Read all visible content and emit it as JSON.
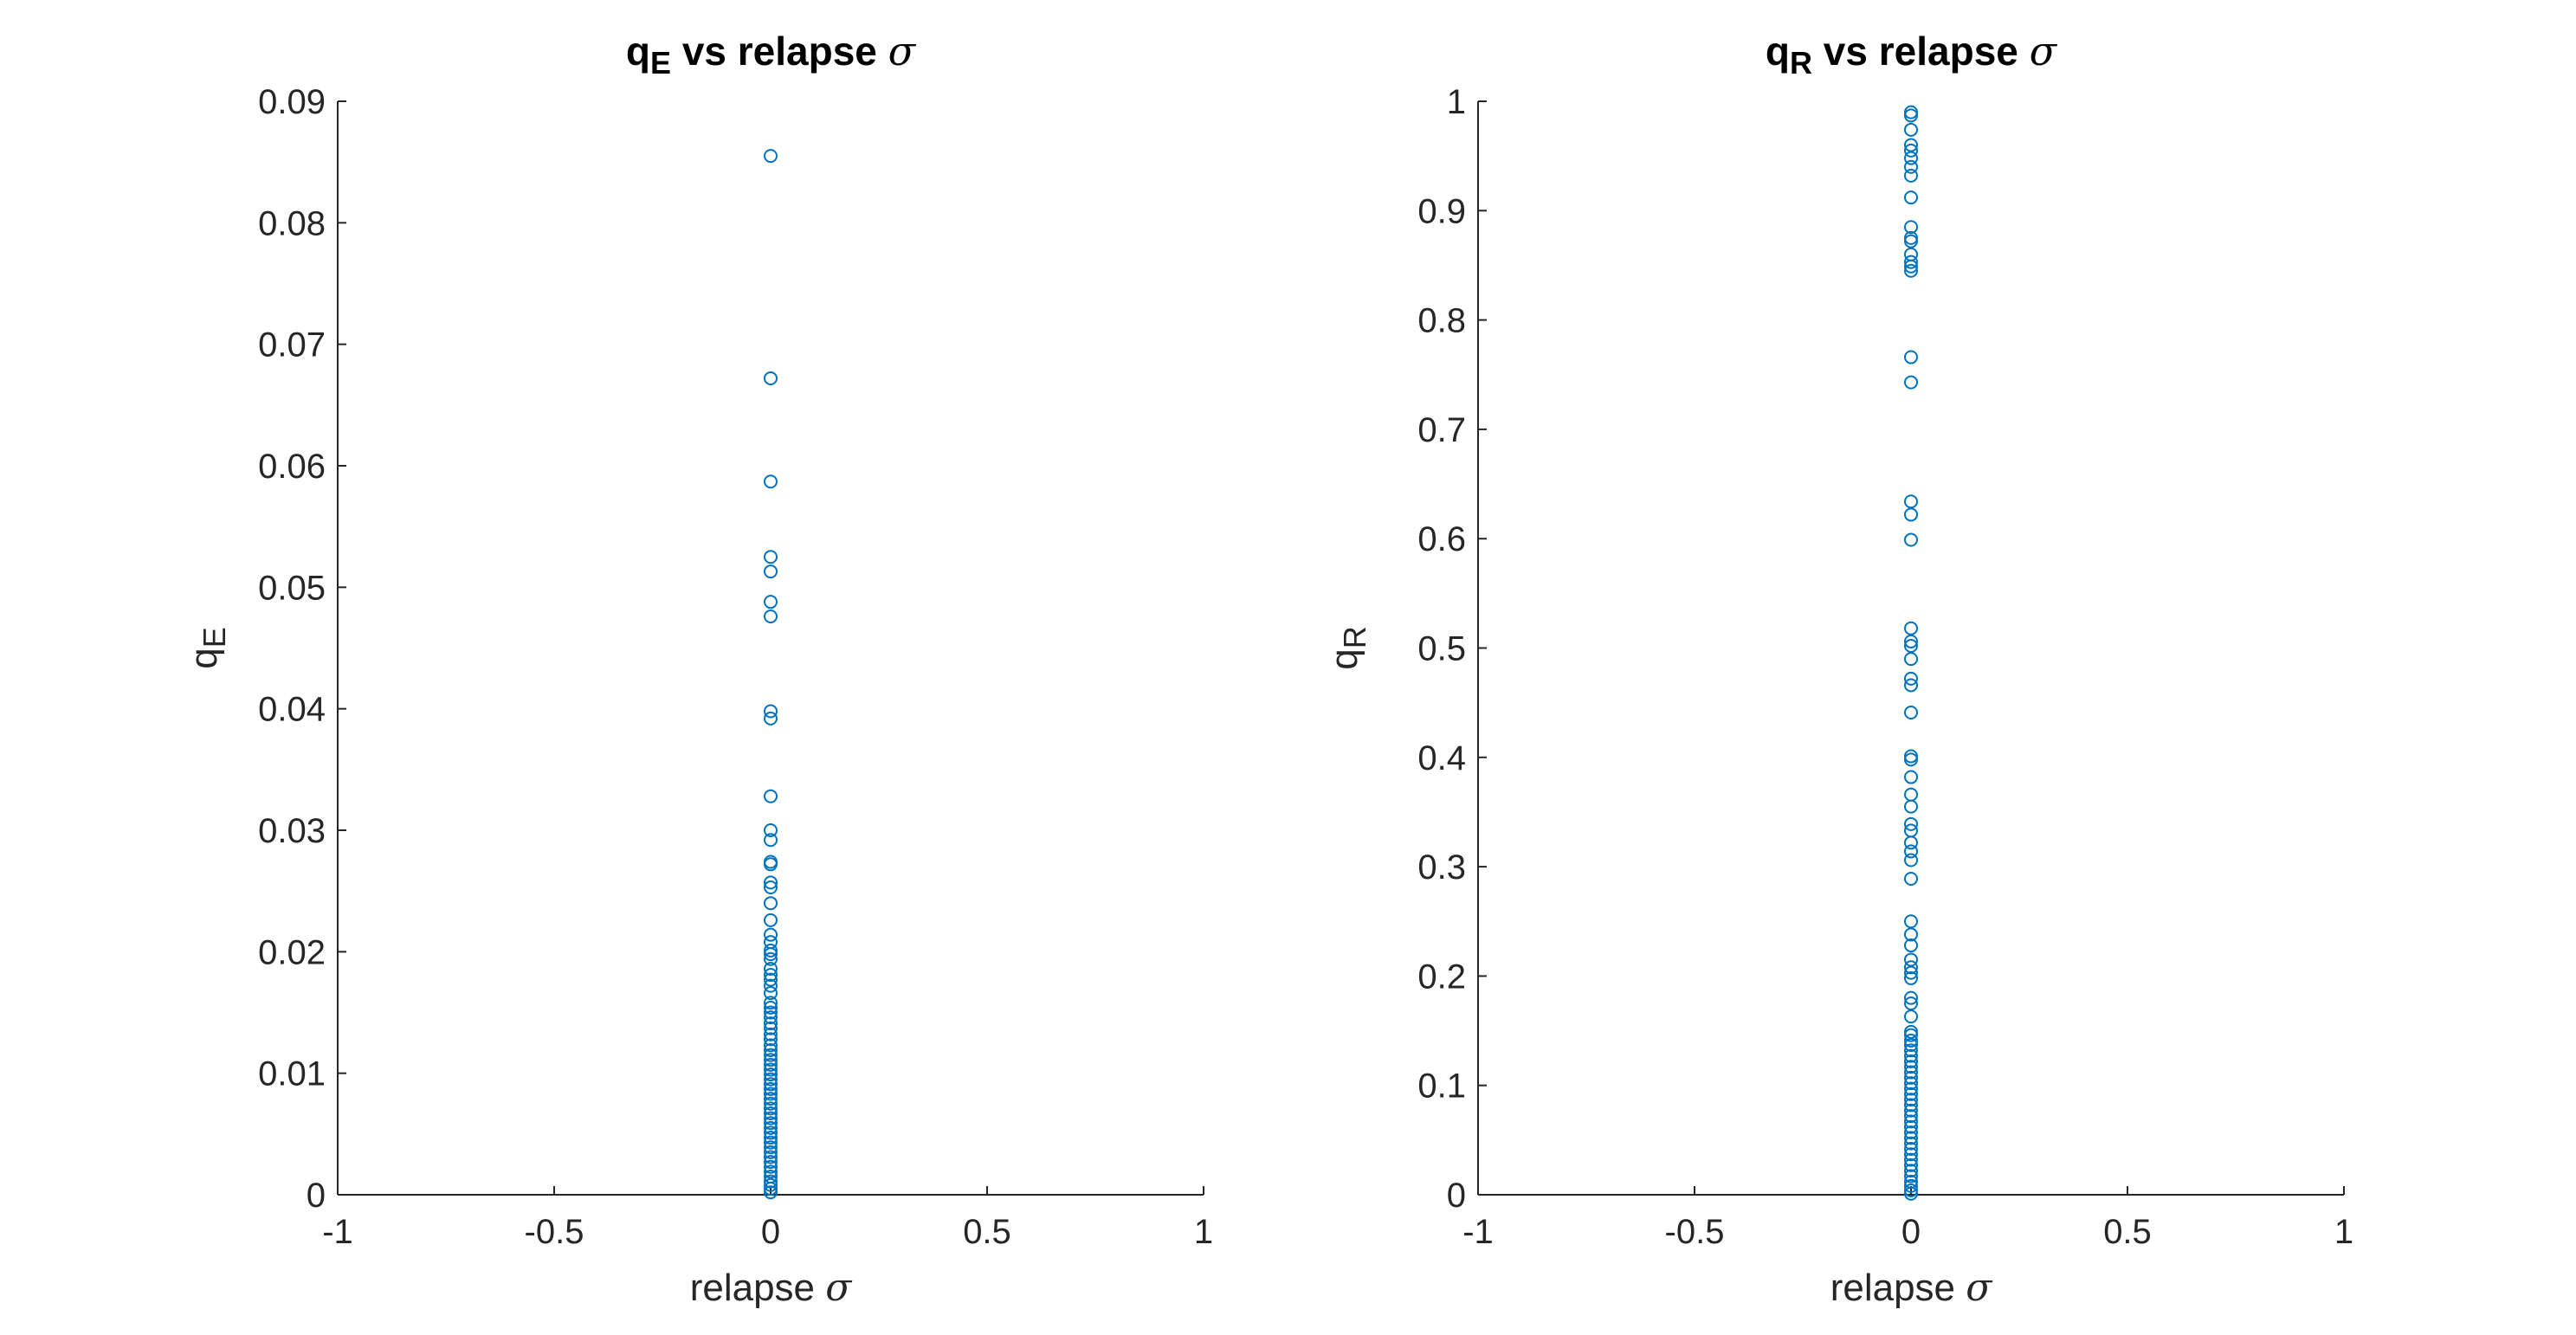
{
  "chart_data": [
    {
      "type": "scatter",
      "title": {
        "main": "q",
        "sub": "E",
        "rest": " vs relapse ",
        "sym": "σ"
      },
      "xlabel": {
        "text": "relapse ",
        "sym": "σ"
      },
      "ylabel": {
        "main": "q",
        "sub": "E"
      },
      "xlim": [
        -1,
        1
      ],
      "ylim": [
        0,
        0.09
      ],
      "xticks": [
        "-1",
        "-0.5",
        "0",
        "0.5",
        "1"
      ],
      "xtick_values": [
        -1,
        -0.5,
        0,
        0.5,
        1
      ],
      "yticks": [
        "0",
        "0.01",
        "0.02",
        "0.03",
        "0.04",
        "0.05",
        "0.06",
        "0.07",
        "0.08",
        "0.09"
      ],
      "ytick_values": [
        0,
        0.01,
        0.02,
        0.03,
        0.04,
        0.05,
        0.06,
        0.07,
        0.08,
        0.09
      ],
      "grid": false,
      "marker": "circle",
      "color": "#0072BD",
      "x": 0,
      "y": [
        0.0855,
        0.0672,
        0.0587,
        0.0525,
        0.0513,
        0.0488,
        0.0476,
        0.0398,
        0.0392,
        0.0328,
        0.03,
        0.0292,
        0.0274,
        0.0272,
        0.0257,
        0.0253,
        0.024,
        0.0226,
        0.0214,
        0.0208,
        0.0201,
        0.0198,
        0.0194,
        0.0186,
        0.0181,
        0.0177,
        0.0172,
        0.0166,
        0.0158,
        0.0154,
        0.015,
        0.0146,
        0.0141,
        0.0137,
        0.0132,
        0.0128,
        0.0123,
        0.0119,
        0.0115,
        0.0111,
        0.0107,
        0.0103,
        0.0099,
        0.0095,
        0.0091,
        0.0087,
        0.0083,
        0.0079,
        0.0075,
        0.0071,
        0.0067,
        0.0063,
        0.0059,
        0.0055,
        0.0051,
        0.0047,
        0.0043,
        0.0039,
        0.0035,
        0.0031,
        0.0027,
        0.0023,
        0.0019,
        0.0015,
        0.0011,
        0.0008,
        0.0005,
        0.0002
      ]
    },
    {
      "type": "scatter",
      "title": {
        "main": "q",
        "sub": "R",
        "rest": " vs relapse ",
        "sym": "σ"
      },
      "xlabel": {
        "text": "relapse ",
        "sym": "σ"
      },
      "ylabel": {
        "main": "q",
        "sub": "R"
      },
      "xlim": [
        -1,
        1
      ],
      "ylim": [
        0,
        1
      ],
      "xticks": [
        "-1",
        "-0.5",
        "0",
        "0.5",
        "1"
      ],
      "xtick_values": [
        -1,
        -0.5,
        0,
        0.5,
        1
      ],
      "yticks": [
        "0",
        "0.1",
        "0.2",
        "0.3",
        "0.4",
        "0.5",
        "0.6",
        "0.7",
        "0.8",
        "0.9",
        "1"
      ],
      "ytick_values": [
        0,
        0.1,
        0.2,
        0.3,
        0.4,
        0.5,
        0.6,
        0.7,
        0.8,
        0.9,
        1
      ],
      "grid": false,
      "marker": "circle",
      "color": "#0072BD",
      "x": 0,
      "y": [
        0.99,
        0.987,
        0.974,
        0.96,
        0.955,
        0.948,
        0.94,
        0.932,
        0.912,
        0.885,
        0.875,
        0.872,
        0.86,
        0.853,
        0.849,
        0.845,
        0.766,
        0.743,
        0.634,
        0.622,
        0.599,
        0.518,
        0.506,
        0.502,
        0.49,
        0.472,
        0.466,
        0.441,
        0.401,
        0.398,
        0.382,
        0.366,
        0.355,
        0.339,
        0.333,
        0.322,
        0.314,
        0.306,
        0.289,
        0.25,
        0.238,
        0.228,
        0.215,
        0.208,
        0.203,
        0.198,
        0.18,
        0.175,
        0.163,
        0.149,
        0.146,
        0.141,
        0.137,
        0.132,
        0.127,
        0.122,
        0.117,
        0.112,
        0.107,
        0.102,
        0.097,
        0.092,
        0.087,
        0.082,
        0.077,
        0.072,
        0.067,
        0.062,
        0.057,
        0.052,
        0.047,
        0.042,
        0.037,
        0.032,
        0.027,
        0.022,
        0.017,
        0.012,
        0.008,
        0.004,
        0.001
      ]
    }
  ]
}
